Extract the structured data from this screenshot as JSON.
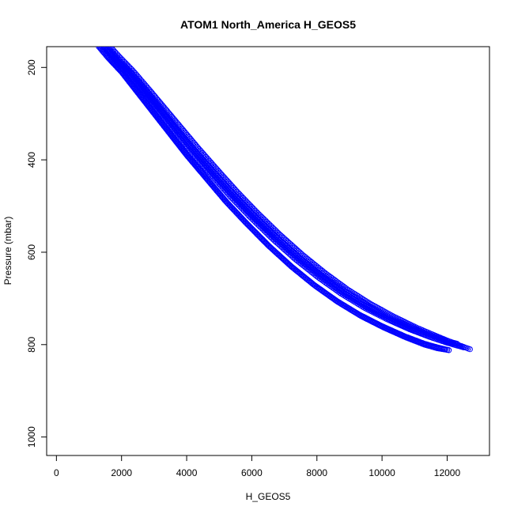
{
  "chart_data": {
    "type": "scatter",
    "title": "ATOM1 North_America H_GEOS5",
    "xlabel": "H_GEOS5",
    "ylabel": "Pressure (mbar)",
    "xlim": [
      -300,
      13300
    ],
    "ylim": [
      1040,
      155
    ],
    "y_reversed": true,
    "x_ticks": [
      0,
      2000,
      4000,
      6000,
      8000,
      10000,
      12000
    ],
    "y_ticks": [
      200,
      400,
      600,
      800,
      1000
    ],
    "x_tick_labels": [
      "0",
      "2000",
      "4000",
      "6000",
      "8000",
      "10000",
      "12000"
    ],
    "y_tick_labels": [
      "200",
      "400",
      "600",
      "800",
      "1000"
    ],
    "marker": "open-circle",
    "connect_points": true,
    "grid": false,
    "legend": "none",
    "color": "#0000ff",
    "series": [
      {
        "x": [
          1300,
          1600,
          2000,
          2500,
          3000,
          3500,
          4000,
          4600,
          5200,
          5800,
          6500,
          7200,
          7900,
          8600,
          9300,
          10000,
          10700,
          11300,
          11700,
          12050
        ],
        "y": [
          155,
          180,
          210,
          255,
          300,
          345,
          390,
          440,
          490,
          535,
          585,
          630,
          670,
          705,
          735,
          760,
          782,
          798,
          806,
          812
        ]
      },
      {
        "x": [
          1450,
          1750,
          2150,
          2650,
          3150,
          3650,
          4150,
          4750,
          5350,
          5950,
          6650,
          7350,
          8050,
          8750,
          9450,
          10150,
          10850,
          11450,
          11850,
          12200
        ],
        "y": [
          155,
          180,
          210,
          252,
          296,
          340,
          384,
          432,
          480,
          524,
          572,
          616,
          655,
          690,
          720,
          745,
          767,
          783,
          792,
          798
        ]
      },
      {
        "x": [
          1550,
          1850,
          2250,
          2750,
          3250,
          3750,
          4250,
          4850,
          5450,
          6050,
          6750,
          7450,
          8150,
          8850,
          9550,
          10250,
          10950,
          11550,
          12000,
          12300
        ],
        "y": [
          155,
          178,
          208,
          250,
          293,
          336,
          379,
          427,
          474,
          518,
          566,
          610,
          650,
          685,
          715,
          741,
          764,
          781,
          792,
          798
        ]
      },
      {
        "x": [
          1650,
          1950,
          2350,
          2850,
          3350,
          3850,
          4350,
          4950,
          5550,
          6150,
          6850,
          7550,
          8250,
          8950,
          9650,
          10350,
          11050,
          11650,
          12200,
          12700
        ],
        "y": [
          155,
          178,
          207,
          248,
          290,
          332,
          374,
          422,
          469,
          513,
          561,
          605,
          645,
          681,
          712,
          739,
          763,
          781,
          797,
          810
        ]
      },
      {
        "x": [
          1500,
          1800,
          2200,
          2700,
          3200,
          3700,
          4200,
          4800,
          5400,
          6000,
          6700,
          7400,
          8100,
          8800,
          9500,
          10200,
          10900,
          11500,
          12000,
          12500
        ],
        "y": [
          155,
          179,
          209,
          251,
          294,
          338,
          381,
          430,
          477,
          521,
          569,
          613,
          652,
          688,
          718,
          744,
          767,
          784,
          796,
          806
        ]
      },
      {
        "x": [
          1350,
          1650,
          2050,
          2550,
          3050,
          3550,
          4050,
          4650,
          5250,
          5850,
          6550,
          7250,
          7950,
          8650,
          9350,
          10050,
          10750,
          11300,
          11700,
          12050
        ],
        "y": [
          155,
          181,
          212,
          257,
          302,
          347,
          392,
          443,
          493,
          538,
          588,
          633,
          673,
          708,
          738,
          763,
          785,
          800,
          808,
          812
        ]
      }
    ]
  }
}
